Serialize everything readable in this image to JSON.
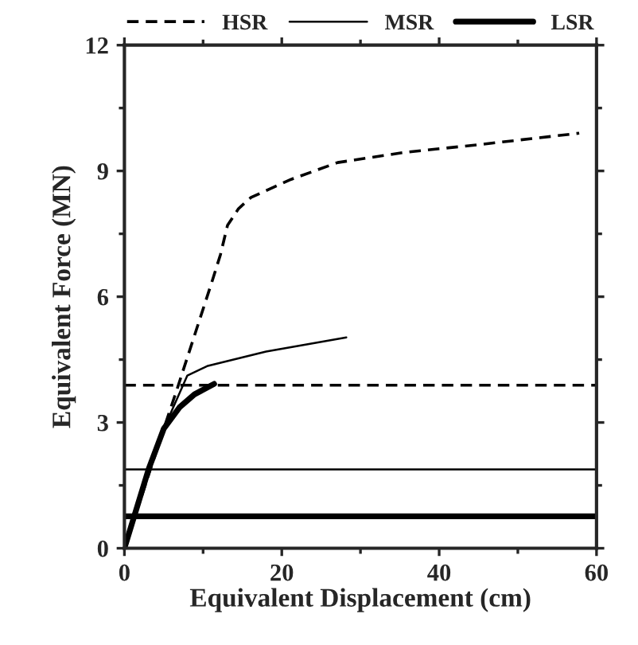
{
  "chart_data": {
    "type": "line",
    "xlabel": "Equivalent Displacement (cm)",
    "ylabel": "Equivalent Force (MN)",
    "xlim": [
      0,
      60
    ],
    "xticks": [
      0,
      20,
      40,
      60
    ],
    "ylim": [
      0,
      12
    ],
    "yticks": [
      0,
      3,
      6,
      9,
      12
    ],
    "legend": "top",
    "grid": false,
    "series": [
      {
        "name": "HSR",
        "color": "#000000",
        "line_style": "dashed",
        "x": [
          0,
          5.0,
          6.7,
          11.2,
          12.2,
          13.1,
          14.5,
          16.1,
          21.2,
          27.1,
          35.5,
          45.2,
          57.8
        ],
        "values": [
          0,
          2.85,
          3.8,
          6.4,
          7.0,
          7.7,
          8.1,
          8.37,
          8.8,
          9.2,
          9.44,
          9.63,
          9.9
        ]
      },
      {
        "name": "MSR",
        "color": "#000000",
        "line_style": "solid",
        "x": [
          0,
          3.1,
          5.0,
          8.0,
          10.6,
          18,
          28.2
        ],
        "values": [
          0,
          1.9,
          2.85,
          4.12,
          4.35,
          4.69,
          5.03
        ]
      },
      {
        "name": "LSR",
        "color": "#000000",
        "line_style": "solid",
        "x": [
          0,
          3.1,
          5.0,
          7.0,
          8.9,
          11.4
        ],
        "values": [
          0,
          1.9,
          2.85,
          3.36,
          3.67,
          3.92
        ]
      }
    ],
    "ref_lines": [
      {
        "axis": "y",
        "value": 3.89,
        "color": "#000000",
        "line_style": "dashed"
      },
      {
        "axis": "y",
        "value": 1.88,
        "color": "#000000",
        "line_style": "solid"
      },
      {
        "axis": "y",
        "value": 0.76,
        "color": "#000000",
        "line_style": "solid"
      }
    ]
  }
}
